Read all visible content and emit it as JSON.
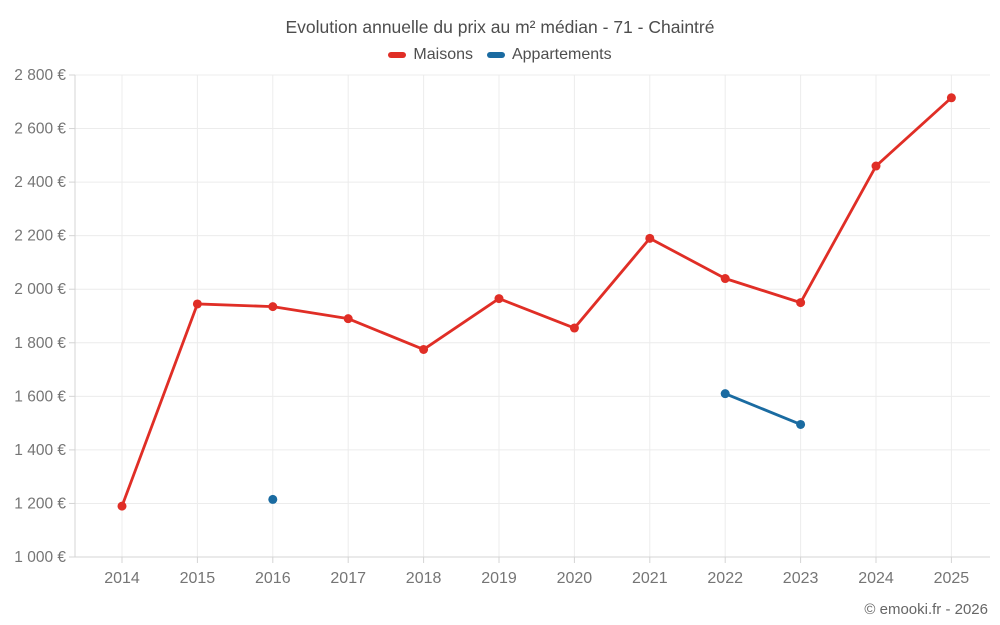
{
  "title": "Evolution annuelle du prix au m² médian - 71 - Chaintré",
  "footer": "© emooki.fr - 2026",
  "legend": [
    {
      "label": "Maisons",
      "color": "#e02e26"
    },
    {
      "label": "Appartements",
      "color": "#1a6ba1"
    }
  ],
  "colors": {
    "maisons": "#e02e26",
    "appartements": "#1a6ba1",
    "grid": "#ececec",
    "axis": "#d4d4d4",
    "tick_label": "#757575",
    "title_text": "#4d4d4d"
  },
  "chart_data": {
    "type": "line",
    "title": "Evolution annuelle du prix au m² médian - 71 - Chaintré",
    "x": [
      2014,
      2015,
      2016,
      2017,
      2018,
      2019,
      2020,
      2021,
      2022,
      2023,
      2024,
      2025
    ],
    "xtick_labels": [
      "2014",
      "2015",
      "2016",
      "2017",
      "2018",
      "2019",
      "2020",
      "2021",
      "2022",
      "2023",
      "2024",
      "2025"
    ],
    "series": [
      {
        "name": "Maisons",
        "color": "#e02e26",
        "values": [
          1190,
          1945,
          1935,
          1890,
          1775,
          1965,
          1855,
          2190,
          2040,
          1950,
          2460,
          2715
        ]
      },
      {
        "name": "Appartements",
        "color": "#1a6ba1",
        "values": [
          null,
          null,
          1215,
          null,
          null,
          null,
          null,
          null,
          1610,
          1495,
          null,
          null
        ]
      }
    ],
    "xlabel": "",
    "ylabel": "",
    "ylim": [
      1000,
      2800
    ],
    "ytick_step": 200,
    "ytick_labels": [
      "1 000 €",
      "1 200 €",
      "1 400 €",
      "1 600 €",
      "1 800 €",
      "2 000 €",
      "2 200 €",
      "2 400 €",
      "2 600 €",
      "2 800 €"
    ],
    "grid": true,
    "legend_position": "top"
  }
}
